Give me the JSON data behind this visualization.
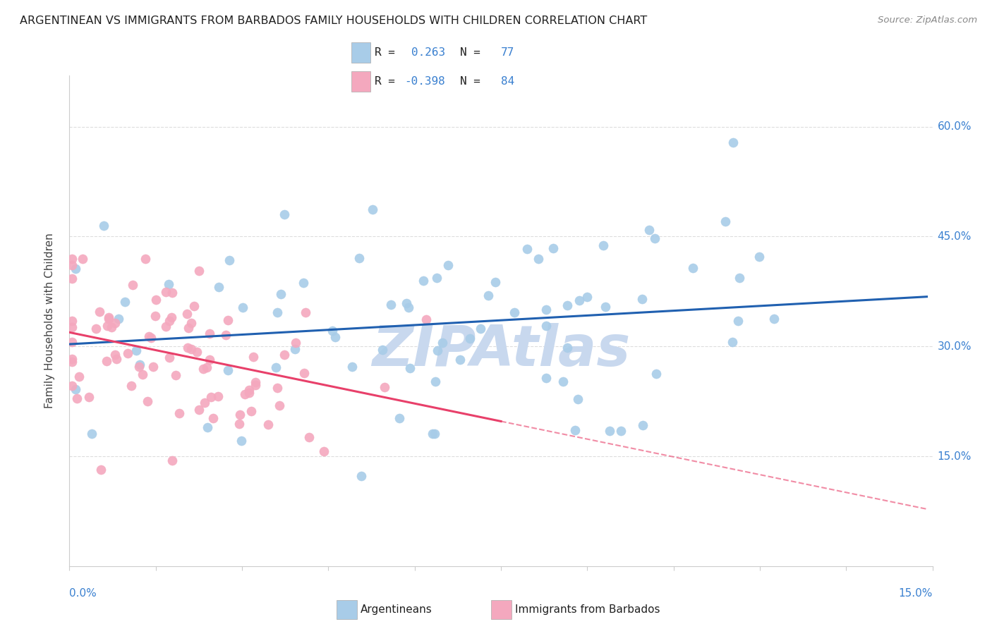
{
  "title": "ARGENTINEAN VS IMMIGRANTS FROM BARBADOS FAMILY HOUSEHOLDS WITH CHILDREN CORRELATION CHART",
  "source": "Source: ZipAtlas.com",
  "ylabel": "Family Households with Children",
  "xlim": [
    0.0,
    15.0
  ],
  "ylim": [
    0.0,
    67.0
  ],
  "yticks": [
    15.0,
    30.0,
    45.0,
    60.0
  ],
  "xticks_n": 11,
  "blue_color": "#a8cce8",
  "pink_color": "#f4a8be",
  "blue_line_color": "#2060b0",
  "pink_line_color": "#e8406a",
  "watermark": "ZIPAtlas",
  "watermark_color": "#c8d8ee",
  "title_color": "#222222",
  "source_color": "#888888",
  "axis_label_color": "#3a80d0",
  "blue_R": 0.263,
  "pink_R": -0.398,
  "blue_N": 77,
  "pink_N": 84,
  "grid_color": "#dddddd",
  "spine_color": "#cccccc"
}
